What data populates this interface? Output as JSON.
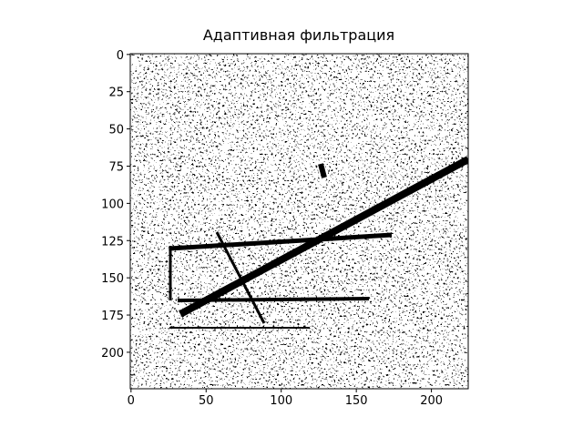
{
  "chart_data": {
    "type": "image",
    "title": "Адаптивная фильтрация",
    "xlim": [
      -0.5,
      224.5
    ],
    "ylim": [
      224.5,
      -0.5
    ],
    "xticks": [
      0,
      50,
      100,
      150,
      200
    ],
    "yticks": [
      0,
      25,
      50,
      75,
      100,
      125,
      150,
      175,
      200
    ],
    "colormap": "gray"
  }
}
